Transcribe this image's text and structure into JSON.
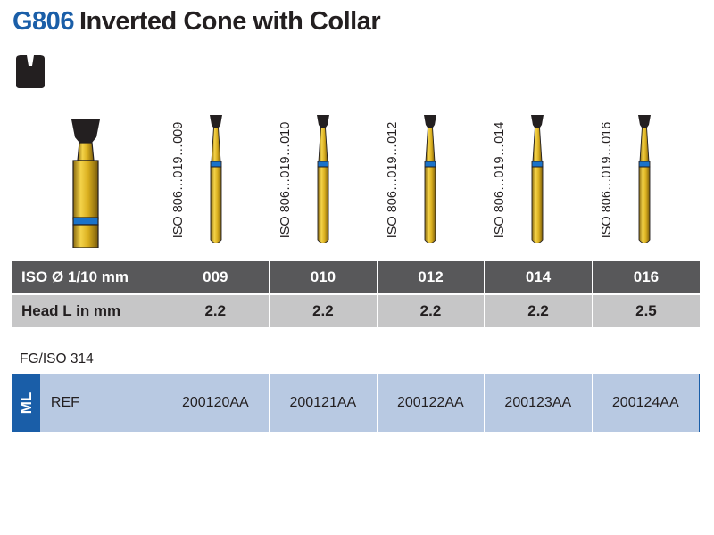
{
  "header": {
    "code": "G806",
    "name": "Inverted Cone with Collar"
  },
  "icons": {
    "shape_icon": "inverted-cone-shape-icon",
    "large_bur": "bur-illustration-icon"
  },
  "colors": {
    "brand_blue": "#1a5ea8",
    "gold": "#d9ae1e",
    "dark_row": "#58585a",
    "light_row": "#c6c6c7",
    "ref_row": "#b8c9e2"
  },
  "burs": [
    {
      "iso": "ISO 806…019…009"
    },
    {
      "iso": "ISO 806…019…010"
    },
    {
      "iso": "ISO 806…019…012"
    },
    {
      "iso": "ISO 806…019…014"
    },
    {
      "iso": "ISO 806…019…016"
    }
  ],
  "spec_table": {
    "row1_label": "ISO Ø 1/10 mm",
    "row1_values": [
      "009",
      "010",
      "012",
      "014",
      "016"
    ],
    "row2_label": "Head L in mm",
    "row2_values": [
      "2.2",
      "2.2",
      "2.2",
      "2.2",
      "2.5"
    ]
  },
  "fg_label": "FG/ISO 314",
  "ref_table": {
    "tab_label": "ML",
    "ref_label": "REF",
    "codes": [
      "200120AA",
      "200121AA",
      "200122AA",
      "200123AA",
      "200124AA"
    ]
  }
}
